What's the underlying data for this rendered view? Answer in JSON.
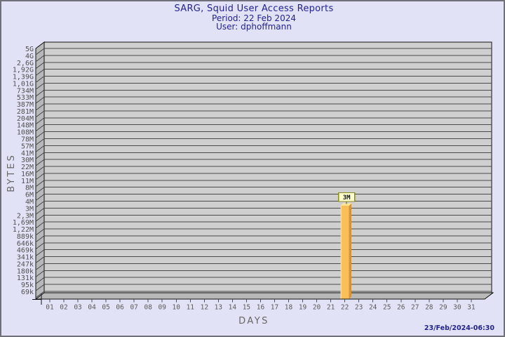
{
  "chart_data": {
    "type": "bar",
    "title": "SARG, Squid User Access Reports",
    "subtitle_lines": [
      "Period: 22 Feb 2024",
      "User: dphoffmann"
    ],
    "xlabel": "DAYS",
    "ylabel": "BYTES",
    "y_axis": {
      "scale": "logarithmic",
      "tick_labels_top_to_bottom": [
        "5G",
        "4G",
        "2,6G",
        "1,92G",
        "1,39G",
        "1,01G",
        "734M",
        "533M",
        "387M",
        "281M",
        "204M",
        "148M",
        "108M",
        "78M",
        "57M",
        "41M",
        "30M",
        "22M",
        "16M",
        "11M",
        "8M",
        "6M",
        "4M",
        "3M",
        "2,3M",
        "1,69M",
        "1,22M",
        "889k",
        "646k",
        "469k",
        "341k",
        "247k",
        "180k",
        "131k",
        "95k",
        "69k"
      ]
    },
    "x_axis": {
      "tick_labels": [
        "01",
        "02",
        "03",
        "04",
        "05",
        "06",
        "07",
        "08",
        "09",
        "10",
        "11",
        "12",
        "13",
        "14",
        "15",
        "16",
        "17",
        "18",
        "19",
        "20",
        "21",
        "22",
        "23",
        "24",
        "25",
        "26",
        "27",
        "28",
        "29",
        "30",
        "31"
      ]
    },
    "bars": [
      {
        "x": "22",
        "value_label": "3M",
        "approx_bytes": 3400000
      }
    ],
    "other_days_value": 0,
    "legend": "none",
    "grid": "horizontal log gridlines, 3D frame"
  },
  "footer": {
    "generated": "23/Feb/2024-06:30"
  },
  "colors": {
    "background": "#E2E2F6",
    "border": "#70707A",
    "plot_bg": "#CFCFCF",
    "wall": "#B8B8B8",
    "grid_line": "#4A4A4A",
    "frame": "#111111",
    "axis_text": "#4F4F4F",
    "title_text": "#23238E",
    "bar_front": "#FBBE59",
    "bar_side": "#D2953A",
    "bar_top": "#FFE598",
    "bar_highlight": "#FFD98F",
    "value_box_fill": "#FFFFCC",
    "value_box_border": "#8B8B21",
    "axis_label_text": "#666666"
  }
}
